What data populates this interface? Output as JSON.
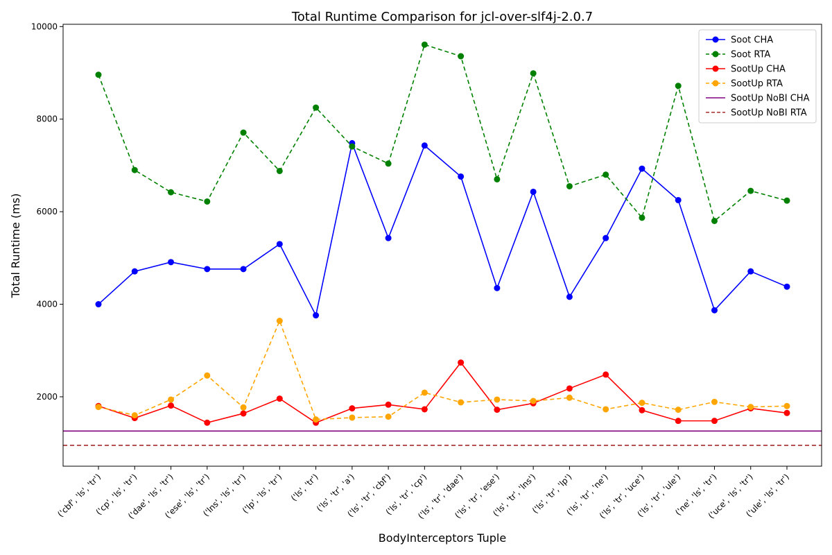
{
  "chart_data": {
    "type": "line",
    "title": "Total Runtime Comparison for jcl-over-slf4j-2.0.7",
    "xlabel": "BodyInterceptors Tuple",
    "ylabel": "Total Runtime (ms)",
    "ylim": [
      500,
      10050
    ],
    "yticks": [
      2000,
      4000,
      6000,
      8000,
      10000
    ],
    "ytick_labels": [
      "2000",
      "4000",
      "6000",
      "8000",
      "10000"
    ],
    "legend_position": "top-right",
    "grid": false,
    "categories": [
      "('cbf', 'ls', 'tr')",
      "('cp', 'ls', 'tr')",
      "('dae', 'ls', 'tr')",
      "('ese', 'ls', 'tr')",
      "('lns', 'ls', 'tr')",
      "('lp', 'ls', 'tr')",
      "('ls', 'tr')",
      "('ls', 'tr', 'a')",
      "('ls', 'tr', 'cbf')",
      "('ls', 'tr', 'cp')",
      "('ls', 'tr', 'dae')",
      "('ls', 'tr', 'ese')",
      "('ls', 'tr', 'lns')",
      "('ls', 'tr', 'lp')",
      "('ls', 'tr', 'ne')",
      "('ls', 'tr', 'uce')",
      "('ls', 'tr', 'ule')",
      "('ne', 'ls', 'tr')",
      "('uce', 'ls', 'tr')",
      "('ule', 'ls', 'tr')"
    ],
    "series": [
      {
        "name": "Soot CHA",
        "color": "#0000ff",
        "line_style": "solid",
        "marker": "circle",
        "values": [
          4000,
          4710,
          4910,
          4760,
          4760,
          5300,
          3760,
          7480,
          5430,
          7430,
          6760,
          4350,
          6430,
          4160,
          5430,
          6930,
          6250,
          3870,
          4710,
          4380
        ]
      },
      {
        "name": "Soot RTA",
        "color": "#008000",
        "line_style": "dashed",
        "marker": "circle",
        "values": [
          8960,
          6900,
          6420,
          6220,
          7710,
          6880,
          8250,
          7410,
          7040,
          9610,
          9360,
          6700,
          8990,
          6550,
          6800,
          5870,
          8720,
          5800,
          6450,
          6240
        ]
      },
      {
        "name": "SootUp CHA",
        "color": "#ff0000",
        "line_style": "solid",
        "marker": "circle",
        "values": [
          1800,
          1540,
          1810,
          1440,
          1640,
          1960,
          1440,
          1750,
          1830,
          1730,
          2740,
          1720,
          1860,
          2180,
          2480,
          1710,
          1480,
          1480,
          1750,
          1650
        ]
      },
      {
        "name": "SootUp RTA",
        "color": "#ffa500",
        "line_style": "dashed",
        "marker": "circle",
        "values": [
          1780,
          1600,
          1940,
          2460,
          1770,
          3640,
          1510,
          1550,
          1570,
          2090,
          1880,
          1940,
          1910,
          1980,
          1730,
          1870,
          1720,
          1890,
          1780,
          1800
        ]
      },
      {
        "name": "SootUp NoBI CHA",
        "color": "#800080",
        "line_style": "solid",
        "marker": "none",
        "constant": 1260
      },
      {
        "name": "SootUp NoBI RTA",
        "color": "#a52a2a",
        "line_style": "dashed",
        "marker": "none",
        "constant": 950
      }
    ]
  }
}
